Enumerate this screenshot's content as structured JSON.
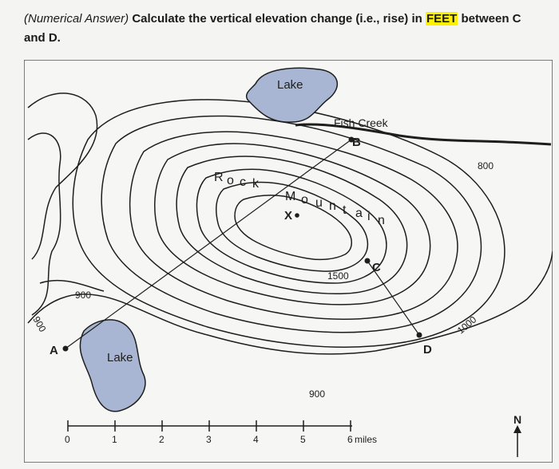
{
  "question": {
    "prefix": "(Numerical Answer)",
    "text_before": "Calculate the vertical elevation change (i.e., rise) in",
    "highlight": "FEET",
    "text_after": "between C and D."
  },
  "map": {
    "lake_top": "Lake",
    "lake_left": "Lake",
    "creek": "Fish Creek",
    "mountain_letters": [
      "R",
      "o",
      "c",
      "k",
      "M",
      "o",
      "u",
      "n",
      "t",
      "a",
      "i",
      "n"
    ],
    "points": {
      "A": "A",
      "B": "B",
      "C": "C",
      "D": "D",
      "X": "X"
    },
    "contour_labels": {
      "c800": "800",
      "c1000": "1000",
      "c1500": "1500",
      "c900_left": "900",
      "c900_bottom": "900",
      "c900_edge": "900"
    },
    "scale": {
      "ticks": [
        "0",
        "1",
        "2",
        "3",
        "4",
        "5",
        "6"
      ],
      "unit": "miles"
    },
    "north": "N",
    "colors": {
      "lake": "#a8b6d3",
      "line": "#1e1e1e"
    }
  }
}
